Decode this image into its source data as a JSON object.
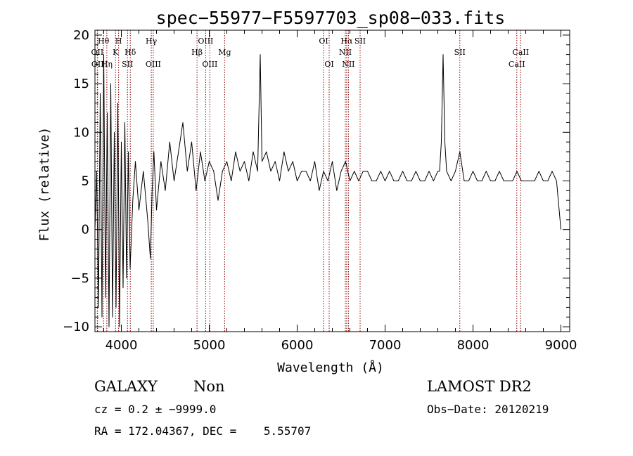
{
  "chart_data": {
    "type": "line",
    "title": "spec−55977−F5597703_sp08−033.fits",
    "xlabel": "Wavelength (Å)",
    "ylabel": "Flux (relative)",
    "xlim": [
      3700,
      9100
    ],
    "ylim": [
      -10.5,
      20.5
    ],
    "xticks": [
      4000,
      5000,
      6000,
      7000,
      8000,
      9000
    ],
    "xtick_labels": [
      "4000",
      "5000",
      "6000",
      "7000",
      "8000",
      "9000"
    ],
    "yticks": [
      -10,
      -5,
      0,
      5,
      10,
      15,
      20
    ],
    "ytick_labels": [
      "−10",
      "−5",
      "0",
      "5",
      "10",
      "15",
      "20"
    ],
    "line_color": "#000000",
    "marker_color": "#8b0000",
    "series": [
      {
        "x": [
          3700,
          3720,
          3740,
          3760,
          3780,
          3800,
          3820,
          3840,
          3860,
          3880,
          3900,
          3920,
          3940,
          3960,
          3980,
          4000,
          4020,
          4040,
          4060,
          4080,
          4100,
          4130,
          4160,
          4200,
          4250,
          4300,
          4330,
          4350,
          4370,
          4400,
          4450,
          4500,
          4550,
          4600,
          4650,
          4700,
          4750,
          4800,
          4850,
          4900,
          4950,
          5000,
          5050,
          5100,
          5150,
          5200,
          5250,
          5300,
          5350,
          5400,
          5450,
          5500,
          5550,
          5580,
          5600,
          5650,
          5700,
          5750,
          5800,
          5850,
          5900,
          5950,
          6000,
          6050,
          6100,
          6150,
          6200,
          6250,
          6300,
          6350,
          6400,
          6450,
          6500,
          6550,
          6600,
          6650,
          6700,
          6750,
          6800,
          6850,
          6900,
          6950,
          7000,
          7050,
          7100,
          7150,
          7200,
          7250,
          7300,
          7350,
          7400,
          7450,
          7500,
          7550,
          7600,
          7620,
          7640,
          7660,
          7680,
          7700,
          7750,
          7800,
          7850,
          7900,
          7950,
          8000,
          8050,
          8100,
          8150,
          8200,
          8250,
          8300,
          8350,
          8400,
          8450,
          8500,
          8550,
          8600,
          8650,
          8700,
          8750,
          8800,
          8850,
          8900,
          8950,
          9000
        ],
        "y": [
          0,
          6,
          -8,
          14,
          -9,
          18,
          -7,
          12,
          -10,
          15,
          -9,
          10,
          -8,
          13,
          -10,
          9,
          -6,
          11,
          -5,
          8,
          -4,
          3,
          7,
          2,
          6,
          1,
          -3,
          4,
          8,
          2,
          7,
          4,
          9,
          5,
          8,
          11,
          6,
          9,
          4,
          8,
          5,
          7,
          6,
          3,
          6,
          7,
          5,
          8,
          6,
          7,
          5,
          8,
          6,
          18,
          7,
          8,
          6,
          7,
          5,
          8,
          6,
          7,
          5,
          6,
          6,
          5,
          7,
          4,
          6,
          5,
          7,
          4,
          6,
          7,
          5,
          6,
          5,
          6,
          6,
          5,
          5,
          6,
          5,
          6,
          5,
          5,
          6,
          5,
          5,
          6,
          5,
          5,
          6,
          5,
          6,
          6,
          9,
          18,
          9,
          6,
          5,
          6,
          8,
          5,
          5,
          6,
          5,
          5,
          6,
          5,
          5,
          6,
          5,
          5,
          5,
          6,
          5,
          5,
          5,
          5,
          6,
          5,
          5,
          6,
          5,
          0
        ]
      }
    ],
    "markers": [
      {
        "x": 3727,
        "label": "OII",
        "row": 2
      },
      {
        "x": 3730,
        "label": "OII",
        "row": 3
      },
      {
        "x": 3797,
        "label": "Hθ",
        "row": 1
      },
      {
        "x": 3835,
        "label": "Hη",
        "row": 3
      },
      {
        "x": 3934,
        "label": "K",
        "row": 2
      },
      {
        "x": 3969,
        "label": "H",
        "row": 1
      },
      {
        "x": 4070,
        "label": "SII",
        "row": 3
      },
      {
        "x": 4102,
        "label": "Hδ",
        "row": 2
      },
      {
        "x": 4341,
        "label": "Hγ",
        "row": 1
      },
      {
        "x": 4363,
        "label": "OIII",
        "row": 3
      },
      {
        "x": 4861,
        "label": "Hβ",
        "row": 2
      },
      {
        "x": 4959,
        "label": "OIII",
        "row": 1
      },
      {
        "x": 5007,
        "label": "OIII",
        "row": 3
      },
      {
        "x": 5175,
        "label": "Mg",
        "row": 2
      },
      {
        "x": 6300,
        "label": "OI",
        "row": 1
      },
      {
        "x": 6364,
        "label": "OI",
        "row": 3
      },
      {
        "x": 6548,
        "label": "NII",
        "row": 2
      },
      {
        "x": 6563,
        "label": "Hα",
        "row": 1
      },
      {
        "x": 6583,
        "label": "NII",
        "row": 3
      },
      {
        "x": 6716,
        "label": "SII",
        "row": 1
      },
      {
        "x": 7850,
        "label": "SII",
        "row": 2
      },
      {
        "x": 8498,
        "label": "CaII",
        "row": 3
      },
      {
        "x": 8542,
        "label": "CaII",
        "row": 2
      }
    ]
  },
  "info": {
    "object_class": "GALAXY",
    "subclass": "Non",
    "survey": "LAMOST DR2",
    "cz_line": "cz = 0.2 ± −9999.0",
    "obs_date": "Obs−Date: 20120219",
    "coords": "RA = 172.04367, DEC =    5.55707"
  }
}
